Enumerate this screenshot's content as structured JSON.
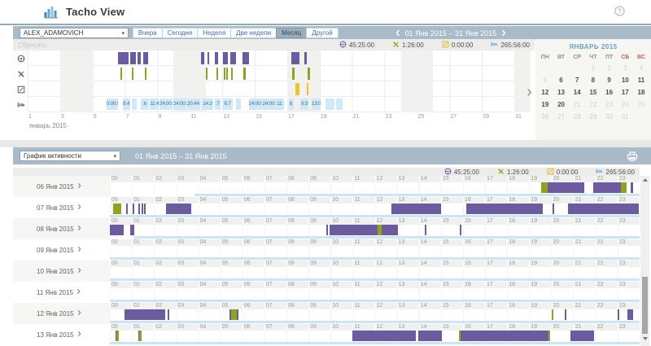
{
  "header": {
    "title": "Tacho View"
  },
  "stats": [
    {
      "name": "driving",
      "icon": "steering-wheel",
      "color": "#7a5fa8",
      "value": "45:25:00"
    },
    {
      "name": "work",
      "icon": "tools",
      "color": "#8fa31c",
      "value": "1:26:00"
    },
    {
      "name": "availability",
      "icon": "availability",
      "color": "#e9b61e",
      "value": "0:00:00"
    },
    {
      "name": "rest",
      "icon": "bed",
      "color": "#6fa8d6",
      "value": "265:56:00"
    }
  ],
  "panel1": {
    "driver": "ALEX_ADAMOVICH",
    "buttons": [
      {
        "label": "Вчера",
        "active": false
      },
      {
        "label": "Сегодня",
        "active": false
      },
      {
        "label": "Неделя",
        "active": false
      },
      {
        "label": "Две недели",
        "active": false
      },
      {
        "label": "Месяц",
        "active": true
      },
      {
        "label": "Другой",
        "active": false
      }
    ],
    "date_range": "01 Янв 2015 – 31 Янв 2015",
    "reset": "Сбросить",
    "lane_icons": [
      "steering-wheel",
      "tools",
      "availability",
      "bed"
    ],
    "month_chart": {
      "type": "timeline",
      "day_range": [
        1,
        32
      ],
      "axis_days": [
        "1",
        "3",
        "5",
        "7",
        "9",
        "11",
        "13",
        "15",
        "17",
        "19",
        "21",
        "23",
        "25",
        "27",
        "29",
        "31"
      ],
      "month_label": "январь 2015",
      "weekend_bands": [
        [
          3,
          5
        ],
        [
          10,
          12
        ],
        [
          17,
          19
        ],
        [
          24,
          26
        ],
        [
          31,
          32
        ]
      ],
      "lanes": {
        "driving": [
          [
            6.56,
            7.2
          ],
          [
            7.34,
            7.68
          ],
          [
            7.78,
            7.98
          ],
          [
            8.12,
            8.41
          ],
          [
            11.68,
            11.88
          ],
          [
            12.07,
            12.17
          ],
          [
            12.56,
            12.76
          ],
          [
            13.05,
            13.34
          ],
          [
            13.49,
            13.83
          ],
          [
            14.22,
            14.66
          ],
          [
            17.24,
            17.73
          ],
          [
            18.07,
            18.22
          ]
        ],
        "work": [
          [
            6.7,
            6.8
          ],
          [
            7.4,
            7.48
          ],
          [
            8.2,
            8.3
          ],
          [
            11.98,
            12.06
          ],
          [
            12.65,
            12.73
          ],
          [
            13.1,
            13.18
          ],
          [
            13.24,
            13.3
          ],
          [
            13.52,
            13.6
          ],
          [
            14.3,
            14.42
          ],
          [
            17.3,
            17.44
          ],
          [
            18.28,
            18.4
          ]
        ],
        "availability": [
          [
            17.5,
            17.74
          ],
          [
            18.2,
            18.32
          ]
        ]
      },
      "rest_segments": [
        {
          "d": [
            5.85,
            6.55
          ],
          "t": "0:00:0"
        },
        {
          "d": [
            6.85,
            7.3
          ],
          "t": "8:4"
        },
        {
          "d": [
            7.42,
            7.72
          ],
          "t": ""
        },
        {
          "d": [
            7.95,
            8.45
          ],
          "t": ":6"
        },
        {
          "d": [
            8.52,
            9.1
          ],
          "t": "11:4"
        },
        {
          "d": [
            9.12,
            9.95
          ],
          "t": "24:00:00"
        },
        {
          "d": [
            9.97,
            10.8
          ],
          "t": "24:00:00"
        },
        {
          "d": [
            10.82,
            11.65
          ],
          "t": "20:44:0"
        },
        {
          "d": [
            11.75,
            12.42
          ],
          "t": "14:2"
        },
        {
          "d": [
            12.52,
            12.88
          ],
          "t": ":7"
        },
        {
          "d": [
            13.02,
            13.62
          ],
          "t": "6:7"
        },
        {
          "d": [
            13.85,
            14.15
          ],
          "t": ""
        },
        {
          "d": [
            14.62,
            15.45
          ],
          "t": "24:00:00"
        },
        {
          "d": [
            15.47,
            16.3
          ],
          "t": "24:00:00"
        },
        {
          "d": [
            16.32,
            16.78
          ],
          "t": "11:"
        },
        {
          "d": [
            17.08,
            17.4
          ],
          "t": "8:"
        },
        {
          "d": [
            17.82,
            18.3
          ],
          "t": "9:3"
        },
        {
          "d": [
            18.5,
            19.05
          ],
          "t": "13:0"
        },
        {
          "d": [
            19.35,
            19.9
          ],
          "t": ""
        },
        {
          "d": [
            20.02,
            20.4
          ],
          "t": ""
        }
      ]
    },
    "calendar": {
      "title": "ЯНВАРЬ 2015",
      "weekdays": [
        "ПН",
        "ВТ",
        "СР",
        "ЧТ",
        "ПТ",
        "СБ",
        "ВС"
      ],
      "weeks": [
        [
          "",
          "",
          "",
          "1",
          "2",
          "3",
          "4"
        ],
        [
          "5",
          "6",
          "7",
          "8",
          "9",
          "10",
          "11"
        ],
        [
          "12",
          "13",
          "14",
          "15",
          "16",
          "17",
          "18"
        ],
        [
          "19",
          "20",
          "21",
          "22",
          "23",
          "24",
          "25"
        ],
        [
          "26",
          "27",
          "28",
          "29",
          "30",
          "31",
          ""
        ]
      ],
      "active_range": [
        6,
        20
      ]
    }
  },
  "panel2": {
    "view": "График активности",
    "date_range": "01 Янв 2015 – 31 Янв 2015",
    "hours": [
      "00",
      "01",
      "02",
      "03",
      "04",
      "05",
      "06",
      "07",
      "08",
      "09",
      "10",
      "11",
      "12",
      "13",
      "14",
      "15",
      "16",
      "17",
      "18",
      "19",
      "20",
      "21",
      "22",
      "23"
    ],
    "rows": [
      {
        "date": "06 Янв 2015",
        "rest": [
          [
            3.85,
            24
          ]
        ],
        "activities": [
          [
            "work",
            19.55,
            19.85
          ],
          [
            "drive",
            19.85,
            21.5
          ],
          [
            "drive",
            21.9,
            23.15
          ],
          [
            "work",
            23.15,
            23.4
          ],
          [
            "drive",
            23.6,
            23.72
          ]
        ]
      },
      {
        "date": "07 Янв 2015",
        "rest": [
          [
            0,
            24
          ]
        ],
        "activities": [
          [
            "work",
            0.15,
            0.5
          ],
          [
            "drive",
            0.72,
            0.8
          ],
          [
            "drive",
            1.02,
            1.08
          ],
          [
            "drive",
            1.28,
            1.34
          ],
          [
            "drive",
            1.42,
            1.48
          ],
          [
            "drive",
            1.56,
            1.62
          ],
          [
            "drive",
            2.55,
            3.7
          ],
          [
            "drive",
            12.75,
            15.0
          ],
          [
            "drive",
            16.15,
            19.6
          ],
          [
            "drive",
            20.05,
            20.12
          ],
          [
            "drive",
            20.75,
            23.95
          ]
        ]
      },
      {
        "date": "08 Янв 2015",
        "rest": [
          [
            1.12,
            24
          ]
        ],
        "activities": [
          [
            "drive",
            0,
            0.62
          ],
          [
            "drive",
            0.92,
            1.12
          ],
          [
            "drive",
            9.82,
            9.88
          ],
          [
            "drive",
            9.95,
            12.12
          ],
          [
            "work",
            12.12,
            12.3
          ],
          [
            "drive",
            12.3,
            13.05
          ],
          [
            "drive",
            14.28,
            14.34
          ],
          [
            "drive",
            15.85,
            15.91
          ]
        ]
      },
      {
        "date": "09 Янв 2015",
        "rest": [
          [
            0,
            24
          ]
        ],
        "activities": []
      },
      {
        "date": "10 Янв 2015",
        "rest": [
          [
            0,
            24
          ]
        ],
        "activities": []
      },
      {
        "date": "11 Янв 2015",
        "rest": [
          [
            0,
            24
          ]
        ],
        "activities": []
      },
      {
        "date": "12 Янв 2015",
        "rest": [
          [
            0,
            24
          ]
        ],
        "activities": [
          [
            "drive",
            0.68,
            2.52
          ],
          [
            "drive",
            2.62,
            2.68
          ],
          [
            "drive",
            5.42,
            5.48
          ],
          [
            "work",
            5.48,
            5.74
          ],
          [
            "drive",
            5.74,
            5.8
          ],
          [
            "work",
            20.02,
            20.08
          ],
          [
            "drive",
            20.6,
            20.66
          ],
          [
            "drive",
            23.02,
            23.08
          ],
          [
            "drive",
            23.45,
            23.7
          ]
        ]
      },
      {
        "date": "13 Янв 2015",
        "rest": [
          [
            0,
            24
          ]
        ],
        "activities": [
          [
            "drive",
            0.27,
            0.31
          ],
          [
            "work",
            0.31,
            0.42
          ],
          [
            "drive",
            1.3,
            1.34
          ],
          [
            "work",
            1.34,
            1.45
          ],
          [
            "drive",
            11.0,
            13.88
          ],
          [
            "drive",
            13.98,
            15.05
          ],
          [
            "work",
            15.8,
            15.88
          ],
          [
            "drive",
            15.88,
            19.88
          ],
          [
            "work",
            19.88,
            19.95
          ],
          [
            "drive",
            20.88,
            21.95
          ]
        ]
      }
    ]
  }
}
